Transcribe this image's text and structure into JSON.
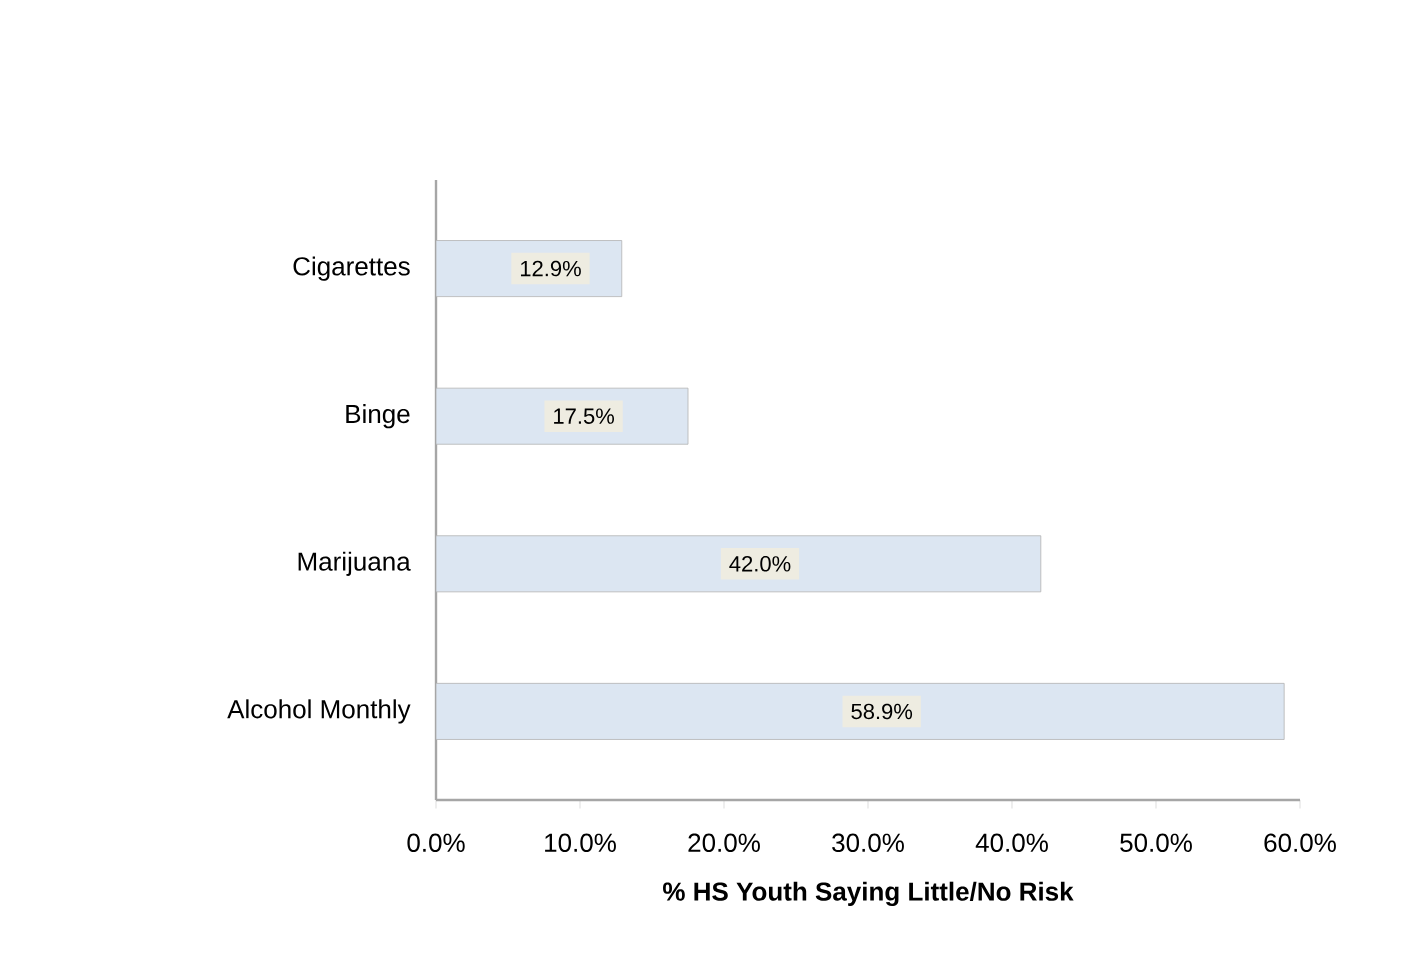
{
  "chart_data": {
    "type": "bar",
    "orientation": "horizontal",
    "xlabel": "**% HS Youth Saying Little/No Risk**",
    "categories": [
      "Cigarettes",
      "Binge",
      "Marijuana",
      "Alcohol Monthly"
    ],
    "values": [
      12.9,
      17.5,
      42.0,
      58.9
    ],
    "value_labels": [
      "12.9%",
      "17.5%",
      "42.0%",
      "58.9%"
    ],
    "color": "#dce6f2",
    "xlim": [
      0,
      60
    ],
    "xticks": [
      {
        "value": 0,
        "label": "0.0%"
      },
      {
        "value": 10,
        "label": "10.0%"
      },
      {
        "value": 20,
        "label": "20.0%"
      },
      {
        "value": 30,
        "label": "30.0%"
      },
      {
        "value": 40,
        "label": "40.0%"
      },
      {
        "value": 50,
        "label": "50.0%"
      },
      {
        "value": 60,
        "label": "60.0%"
      }
    ]
  }
}
